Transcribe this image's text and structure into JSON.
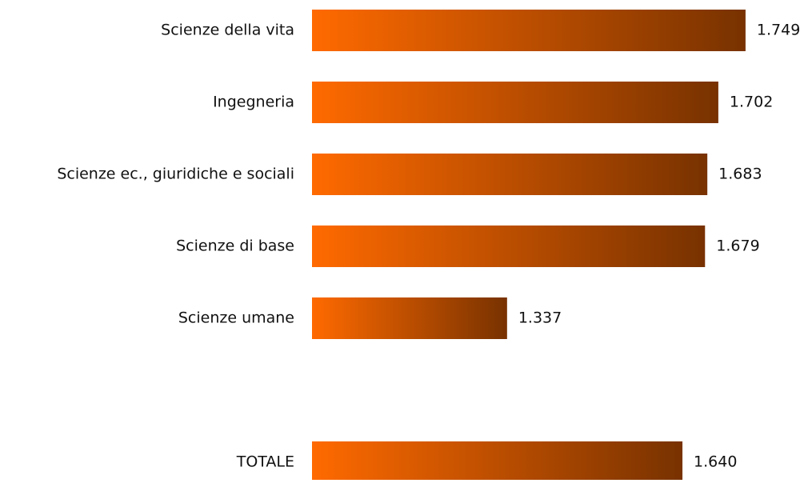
{
  "chart_data": {
    "type": "hbar",
    "categories": [
      "Scienze della vita",
      "Ingegneria",
      "Scienze ec., giuridiche e sociali",
      "Scienze di base",
      "Scienze umane",
      null,
      "TOTALE"
    ],
    "values": [
      1749,
      1702,
      1683,
      1679,
      1337,
      null,
      1640
    ],
    "value_labels": [
      "1.749",
      "1.702",
      "1.683",
      "1.679",
      "1.337",
      null,
      "1.640"
    ],
    "xlim": [
      1000,
      1850
    ],
    "gradient": [
      "#ff6a00",
      "#783200"
    ]
  }
}
